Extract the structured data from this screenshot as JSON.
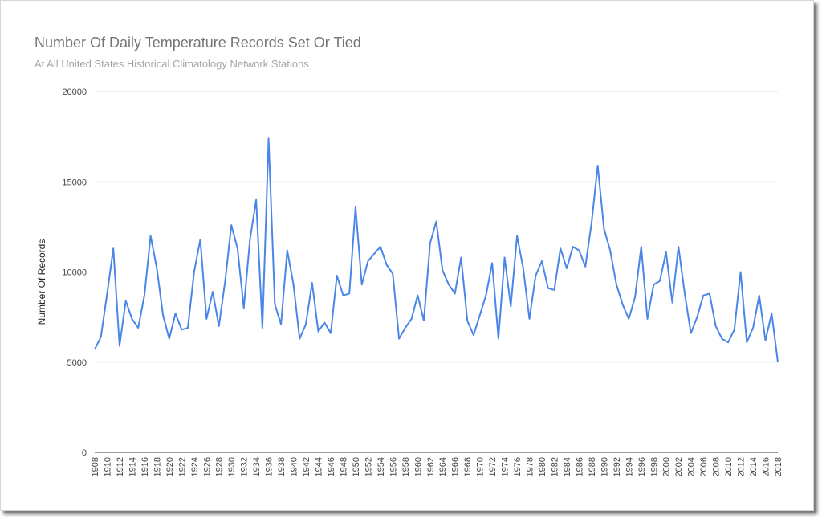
{
  "chart_data": {
    "type": "line",
    "title": "Number Of Daily Temperature Records Set Or Tied",
    "subtitle": "At All United States Historical Climatology Network Stations",
    "xlabel": "",
    "ylabel": "Number Of Records",
    "ylim": [
      0,
      20000
    ],
    "yticks": [
      "0",
      "5000",
      "10000",
      "15000",
      "20000"
    ],
    "grid": true,
    "legend": "none",
    "line_color": "#4a86e8",
    "grid_color": "#dcdcdc",
    "x": [
      1908,
      1909,
      1910,
      1911,
      1912,
      1913,
      1914,
      1915,
      1916,
      1917,
      1918,
      1919,
      1920,
      1921,
      1922,
      1923,
      1924,
      1925,
      1926,
      1927,
      1928,
      1929,
      1930,
      1931,
      1932,
      1933,
      1934,
      1935,
      1936,
      1937,
      1938,
      1939,
      1940,
      1941,
      1942,
      1943,
      1944,
      1945,
      1946,
      1947,
      1948,
      1949,
      1950,
      1951,
      1952,
      1953,
      1954,
      1955,
      1956,
      1957,
      1958,
      1959,
      1960,
      1961,
      1962,
      1963,
      1964,
      1965,
      1966,
      1967,
      1968,
      1969,
      1970,
      1971,
      1972,
      1973,
      1974,
      1975,
      1976,
      1977,
      1978,
      1979,
      1980,
      1981,
      1982,
      1983,
      1984,
      1985,
      1986,
      1987,
      1988,
      1989,
      1990,
      1991,
      1992,
      1993,
      1994,
      1995,
      1996,
      1997,
      1998,
      1999,
      2000,
      2001,
      2002,
      2003,
      2004,
      2005,
      2006,
      2007,
      2008,
      2009,
      2010,
      2011,
      2012,
      2013,
      2014,
      2015,
      2016,
      2017,
      2018
    ],
    "values": [
      5700,
      6400,
      8800,
      11300,
      5900,
      8400,
      7400,
      6900,
      8700,
      12000,
      10200,
      7600,
      6300,
      7700,
      6800,
      6900,
      10000,
      11800,
      7400,
      8900,
      7000,
      9500,
      12600,
      11300,
      8000,
      11800,
      14000,
      6900,
      17400,
      8200,
      7100,
      11200,
      9300,
      6300,
      7100,
      9400,
      6700,
      7200,
      6600,
      9800,
      8700,
      8800,
      13600,
      9300,
      10600,
      11000,
      11400,
      10400,
      9900,
      6300,
      6900,
      7400,
      8700,
      7300,
      11600,
      12800,
      10100,
      9300,
      8800,
      10800,
      7300,
      6500,
      7600,
      8700,
      10500,
      6300,
      10800,
      8100,
      12000,
      10200,
      7400,
      9800,
      10600,
      9100,
      9000,
      11300,
      10200,
      11400,
      11200,
      10300,
      12700,
      15900,
      12400,
      11200,
      9300,
      8200,
      7400,
      8600,
      11400,
      7400,
      9300,
      9500,
      11100,
      8300,
      11400,
      8800,
      6600,
      7500,
      8700,
      8800,
      7000,
      6300,
      6100,
      6800,
      10000,
      6100,
      6900,
      8700,
      6200,
      7700,
      5000
    ],
    "xtick_labels": [
      "1908",
      "1910",
      "1912",
      "1914",
      "1916",
      "1918",
      "1920",
      "1922",
      "1924",
      "1926",
      "1928",
      "1930",
      "1932",
      "1934",
      "1936",
      "1938",
      "1940",
      "1942",
      "1944",
      "1946",
      "1948",
      "1950",
      "1952",
      "1954",
      "1956",
      "1958",
      "1960",
      "1962",
      "1964",
      "1966",
      "1968",
      "1970",
      "1972",
      "1974",
      "1976",
      "1978",
      "1980",
      "1982",
      "1984",
      "1986",
      "1988",
      "1990",
      "1992",
      "1994",
      "1996",
      "1998",
      "2000",
      "2002",
      "2004",
      "2006",
      "2008",
      "2010",
      "2012",
      "2014",
      "2016",
      "2018"
    ]
  }
}
